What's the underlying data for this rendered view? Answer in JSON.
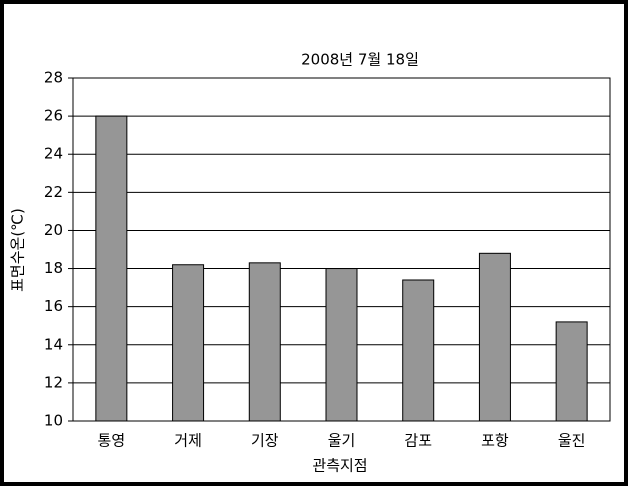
{
  "chart_data": {
    "type": "bar",
    "title": "2008년 7월 18일",
    "y_label": "표면수온(℃)",
    "x_label": "관측지점",
    "categories": [
      "통영",
      "거제",
      "기장",
      "울기",
      "감포",
      "포항",
      "울진"
    ],
    "values": [
      26.0,
      18.2,
      18.3,
      18.0,
      17.4,
      18.8,
      15.2
    ],
    "color": "#969696",
    "ylim": [
      10,
      28
    ],
    "yticks": [
      10,
      12,
      14,
      16,
      18,
      20,
      22,
      24,
      26,
      28
    ],
    "grid": true
  }
}
